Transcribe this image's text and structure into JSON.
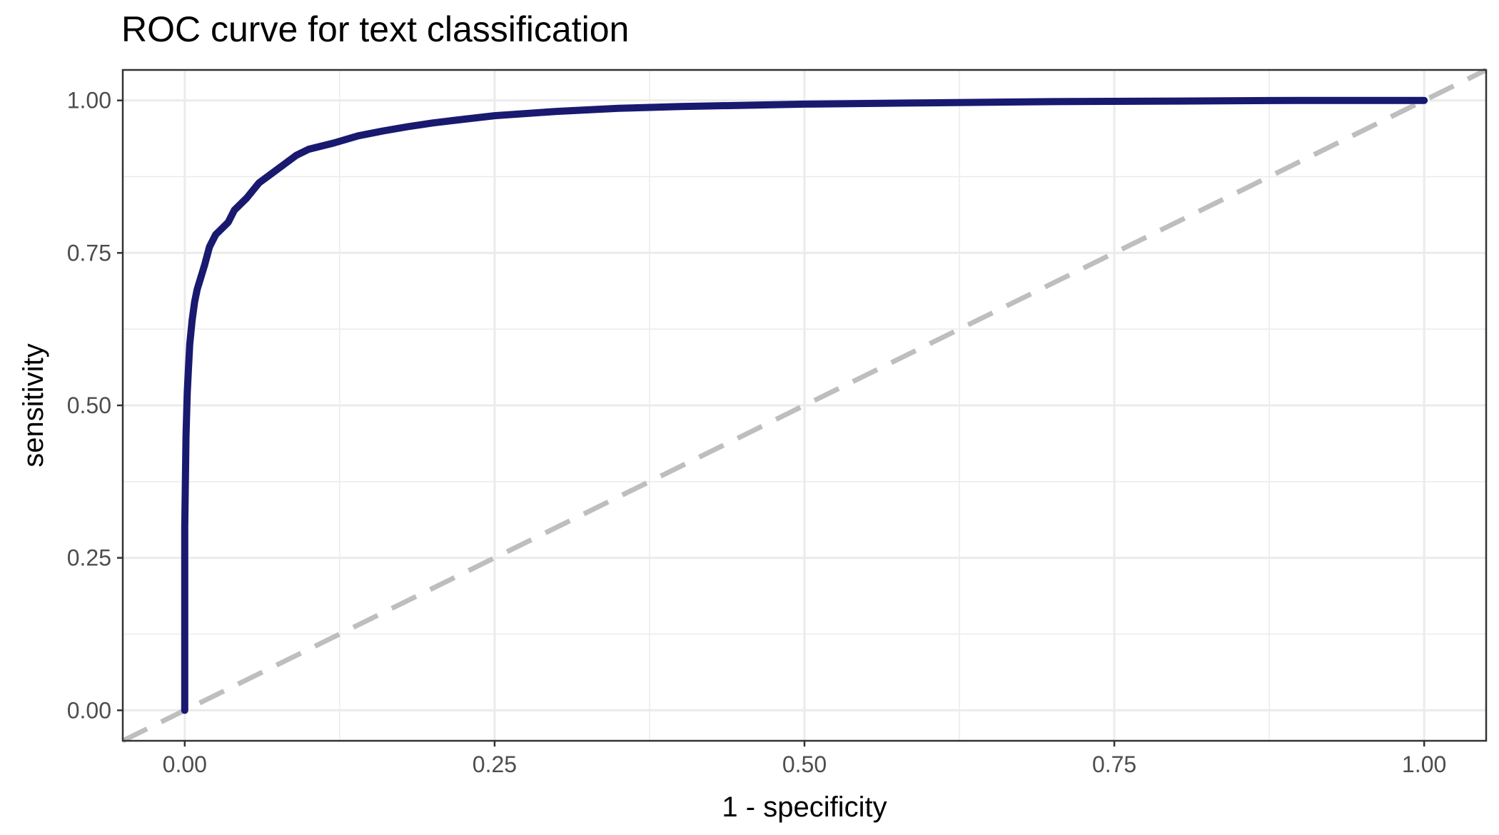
{
  "chart_data": {
    "type": "line",
    "title": "ROC curve for text classification",
    "xlabel": "1 - specificity",
    "ylabel": "sensitivity",
    "xlim": [
      -0.05,
      1.05
    ],
    "ylim": [
      -0.05,
      1.05
    ],
    "x_ticks": [
      0,
      0.25,
      0.5,
      0.75,
      1.0
    ],
    "x_tick_labels": [
      "0.00",
      "0.25",
      "0.50",
      "0.75",
      "1.00"
    ],
    "y_ticks": [
      0,
      0.25,
      0.5,
      0.75,
      1.0
    ],
    "y_tick_labels": [
      "0.00",
      "0.25",
      "0.50",
      "0.75",
      "1.00"
    ],
    "grid": true,
    "colors": {
      "curve": "#191970",
      "reference": "#bebebe",
      "grid": "#ebebeb",
      "panel_border": "#333333"
    },
    "series": [
      {
        "x": [
          0,
          0,
          0.001,
          0.002,
          0.003,
          0.004,
          0.006,
          0.008,
          0.01,
          0.013,
          0.016,
          0.02,
          0.025,
          0.03,
          0.035,
          0.04,
          0.05,
          0.06,
          0.07,
          0.08,
          0.09,
          0.1,
          0.12,
          0.14,
          0.16,
          0.18,
          0.2,
          0.22,
          0.25,
          0.3,
          0.35,
          0.4,
          0.5,
          0.6,
          0.7,
          0.8,
          0.9,
          1.0
        ],
        "y": [
          0,
          0.3,
          0.45,
          0.52,
          0.56,
          0.6,
          0.64,
          0.67,
          0.69,
          0.71,
          0.73,
          0.76,
          0.78,
          0.79,
          0.8,
          0.82,
          0.84,
          0.865,
          0.88,
          0.895,
          0.91,
          0.92,
          0.93,
          0.942,
          0.95,
          0.957,
          0.963,
          0.968,
          0.975,
          0.982,
          0.987,
          0.99,
          0.994,
          0.996,
          0.998,
          0.999,
          1.0,
          1.0
        ]
      },
      {
        "x": [
          -0.05,
          1.05
        ],
        "y": [
          -0.05,
          1.05
        ],
        "style": "dashed"
      }
    ]
  }
}
